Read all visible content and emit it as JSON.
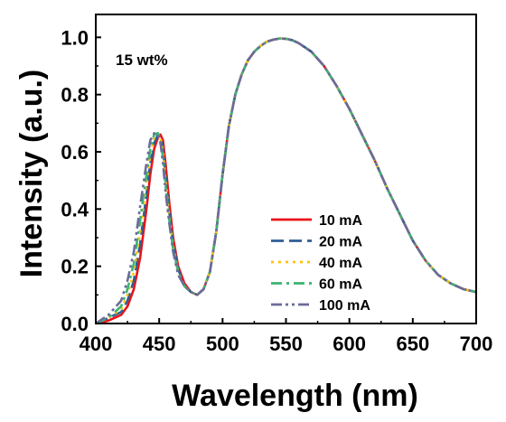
{
  "chart_data": {
    "type": "line",
    "xlabel": "Wavelength (nm)",
    "ylabel": "Intensity (a.u.)",
    "annotation": "15 wt%",
    "xlim": [
      400,
      700
    ],
    "ylim": [
      0,
      1.08
    ],
    "xticks": [
      400,
      450,
      500,
      550,
      600,
      650,
      700
    ],
    "yticks": [
      0.0,
      0.2,
      0.4,
      0.6,
      0.8,
      1.0
    ],
    "xtick_labels": [
      "400",
      "450",
      "500",
      "550",
      "600",
      "650",
      "700"
    ],
    "ytick_labels": [
      "0.0",
      "0.2",
      "0.4",
      "0.6",
      "0.8",
      "1.0"
    ],
    "grid": false,
    "legend_position": "lower-right",
    "series": [
      {
        "name": "10 mA",
        "color": "#e8141b",
        "dash": "solid",
        "x": [
          400,
          410,
          420,
          425,
          430,
          435,
          440,
          443,
          446,
          449,
          451,
          453,
          455,
          458,
          461,
          465,
          470,
          475,
          480,
          485,
          490,
          495,
          500,
          505,
          510,
          515,
          520,
          525,
          530,
          535,
          540,
          545,
          550,
          555,
          560,
          570,
          580,
          590,
          600,
          610,
          620,
          630,
          640,
          650,
          660,
          670,
          680,
          690,
          700
        ],
        "y": [
          0.0,
          0.01,
          0.03,
          0.06,
          0.12,
          0.23,
          0.4,
          0.52,
          0.61,
          0.65,
          0.66,
          0.64,
          0.56,
          0.42,
          0.3,
          0.2,
          0.14,
          0.11,
          0.1,
          0.12,
          0.18,
          0.32,
          0.52,
          0.69,
          0.8,
          0.87,
          0.92,
          0.95,
          0.97,
          0.985,
          0.992,
          0.996,
          0.995,
          0.99,
          0.98,
          0.95,
          0.9,
          0.83,
          0.75,
          0.66,
          0.57,
          0.47,
          0.38,
          0.29,
          0.22,
          0.17,
          0.14,
          0.12,
          0.11
        ]
      },
      {
        "name": "20 mA",
        "color": "#2e5f93",
        "dash": "dashed",
        "x": [
          400,
          410,
          420,
          425,
          430,
          435,
          440,
          443,
          446,
          449,
          451,
          453,
          455,
          458,
          461,
          465,
          470,
          475,
          480,
          485,
          490,
          495,
          500,
          505,
          510,
          515,
          520,
          525,
          530,
          535,
          540,
          545,
          550,
          555,
          560,
          570,
          580,
          590,
          600,
          610,
          620,
          630,
          640,
          650,
          660,
          670,
          680,
          690,
          700
        ],
        "y": [
          0.0,
          0.02,
          0.04,
          0.08,
          0.15,
          0.28,
          0.45,
          0.56,
          0.63,
          0.66,
          0.65,
          0.61,
          0.52,
          0.39,
          0.28,
          0.19,
          0.13,
          0.11,
          0.1,
          0.12,
          0.18,
          0.32,
          0.52,
          0.69,
          0.8,
          0.87,
          0.92,
          0.95,
          0.97,
          0.985,
          0.992,
          0.996,
          0.995,
          0.99,
          0.98,
          0.95,
          0.9,
          0.83,
          0.75,
          0.66,
          0.57,
          0.47,
          0.38,
          0.29,
          0.22,
          0.17,
          0.14,
          0.12,
          0.11
        ]
      },
      {
        "name": "40 mA",
        "color": "#ffc20e",
        "dash": "dotted",
        "x": [
          400,
          410,
          420,
          425,
          430,
          435,
          440,
          443,
          446,
          449,
          451,
          453,
          455,
          458,
          461,
          465,
          470,
          475,
          480,
          485,
          490,
          495,
          500,
          505,
          510,
          515,
          520,
          525,
          530,
          535,
          540,
          545,
          550,
          555,
          560,
          570,
          580,
          590,
          600,
          610,
          620,
          630,
          640,
          650,
          660,
          670,
          680,
          690,
          700
        ],
        "y": [
          0.0,
          0.02,
          0.05,
          0.1,
          0.18,
          0.32,
          0.49,
          0.59,
          0.65,
          0.665,
          0.65,
          0.6,
          0.5,
          0.37,
          0.27,
          0.18,
          0.13,
          0.11,
          0.1,
          0.12,
          0.18,
          0.32,
          0.52,
          0.69,
          0.8,
          0.87,
          0.92,
          0.95,
          0.97,
          0.985,
          0.992,
          0.996,
          0.995,
          0.99,
          0.98,
          0.95,
          0.9,
          0.83,
          0.75,
          0.66,
          0.57,
          0.47,
          0.38,
          0.29,
          0.22,
          0.17,
          0.14,
          0.12,
          0.11
        ]
      },
      {
        "name": "60 mA",
        "color": "#3cb371",
        "dash": "dashdot",
        "x": [
          400,
          410,
          420,
          425,
          430,
          435,
          440,
          443,
          446,
          449,
          451,
          453,
          455,
          458,
          461,
          465,
          470,
          475,
          480,
          485,
          490,
          495,
          500,
          505,
          510,
          515,
          520,
          525,
          530,
          535,
          540,
          545,
          550,
          555,
          560,
          570,
          580,
          590,
          600,
          610,
          620,
          630,
          640,
          650,
          660,
          670,
          680,
          690,
          700
        ],
        "y": [
          0.0,
          0.02,
          0.06,
          0.12,
          0.21,
          0.36,
          0.52,
          0.61,
          0.66,
          0.665,
          0.64,
          0.58,
          0.48,
          0.36,
          0.26,
          0.18,
          0.13,
          0.11,
          0.1,
          0.12,
          0.18,
          0.32,
          0.52,
          0.69,
          0.8,
          0.87,
          0.92,
          0.95,
          0.97,
          0.985,
          0.992,
          0.996,
          0.995,
          0.99,
          0.98,
          0.95,
          0.9,
          0.83,
          0.75,
          0.66,
          0.57,
          0.47,
          0.38,
          0.29,
          0.22,
          0.17,
          0.14,
          0.12,
          0.11
        ]
      },
      {
        "name": "100 mA",
        "color": "#6b6b9a",
        "dash": "dashdotdot",
        "x": [
          400,
          410,
          420,
          425,
          430,
          435,
          440,
          443,
          446,
          449,
          451,
          453,
          455,
          458,
          461,
          465,
          470,
          475,
          480,
          485,
          490,
          495,
          500,
          505,
          510,
          515,
          520,
          525,
          530,
          535,
          540,
          545,
          550,
          555,
          560,
          570,
          580,
          590,
          600,
          610,
          620,
          630,
          640,
          650,
          660,
          670,
          680,
          690,
          700
        ],
        "y": [
          0.0,
          0.03,
          0.08,
          0.15,
          0.25,
          0.41,
          0.56,
          0.64,
          0.665,
          0.66,
          0.63,
          0.56,
          0.46,
          0.35,
          0.25,
          0.17,
          0.13,
          0.11,
          0.1,
          0.12,
          0.18,
          0.32,
          0.52,
          0.69,
          0.8,
          0.87,
          0.92,
          0.95,
          0.97,
          0.985,
          0.992,
          0.996,
          0.995,
          0.99,
          0.98,
          0.95,
          0.9,
          0.83,
          0.75,
          0.66,
          0.57,
          0.47,
          0.38,
          0.29,
          0.22,
          0.17,
          0.14,
          0.12,
          0.11
        ]
      }
    ]
  }
}
